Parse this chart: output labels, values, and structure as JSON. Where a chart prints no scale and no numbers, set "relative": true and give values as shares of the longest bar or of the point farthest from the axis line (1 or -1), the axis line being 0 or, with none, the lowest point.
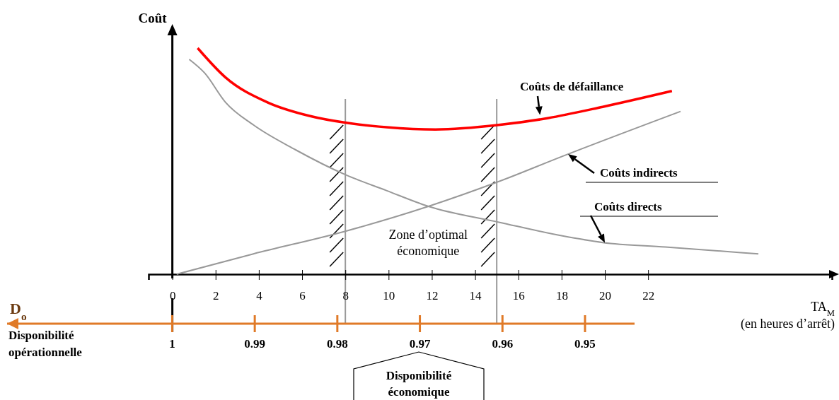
{
  "chart_data": {
    "type": "line",
    "relative": true,
    "ylabel": "Coût",
    "xlabel": "TA$_{M}$ (en heures d’arrêt)",
    "x2label": "D$_{o}$",
    "xlim": [
      -1.1,
      30.5
    ],
    "xticks": [
      0,
      2,
      4,
      6,
      8,
      10,
      12,
      14,
      16,
      18,
      20,
      22
    ],
    "x2lim": [
      1.02,
      0.944
    ],
    "x2ticks": [
      1,
      0.99,
      0.98,
      0.97,
      0.96,
      0.95
    ],
    "series": [
      {
        "name": "Coûts de défaillance",
        "color": "#ff0000",
        "x": [
          1.17,
          2.46,
          4.4,
          6.34,
          8,
          9.9,
          12.17,
          15.1,
          17.35,
          19.9,
          23.1
        ],
        "values": [
          1,
          0.87,
          0.76,
          0.7,
          0.67,
          0.65,
          0.64,
          0.66,
          0.69,
          0.74,
          0.81
        ]
      },
      {
        "name": "Coûts indirects",
        "color": "#999999",
        "x": [
          0.2,
          3.75,
          8,
          11.84,
          15.1,
          18,
          23.5
        ],
        "values": [
          0,
          0.09,
          0.19,
          0.3,
          0.41,
          0.52,
          0.72
        ]
      },
      {
        "name": "Coûts  directs",
        "color": "#999999",
        "x": [
          0.78,
          1.49,
          2.46,
          3.75,
          5.7,
          8,
          9.9,
          11.84,
          15.1,
          18,
          19.9,
          22.8,
          27.1
        ],
        "values": [
          0.95,
          0.89,
          0.76,
          0.66,
          0.55,
          0.44,
          0.37,
          0.3,
          0.23,
          0.17,
          0.14,
          0.12,
          0.09
        ]
      }
    ],
    "ref_lines": [
      {
        "axis": "x",
        "value": 8,
        "color": "#999999"
      },
      {
        "axis": "x",
        "value": 15,
        "color": "#999999"
      }
    ],
    "annotations": [
      "Zone d’optimal économique",
      "Disponibilité opérationnelle",
      "Disponibilité économique"
    ]
  }
}
